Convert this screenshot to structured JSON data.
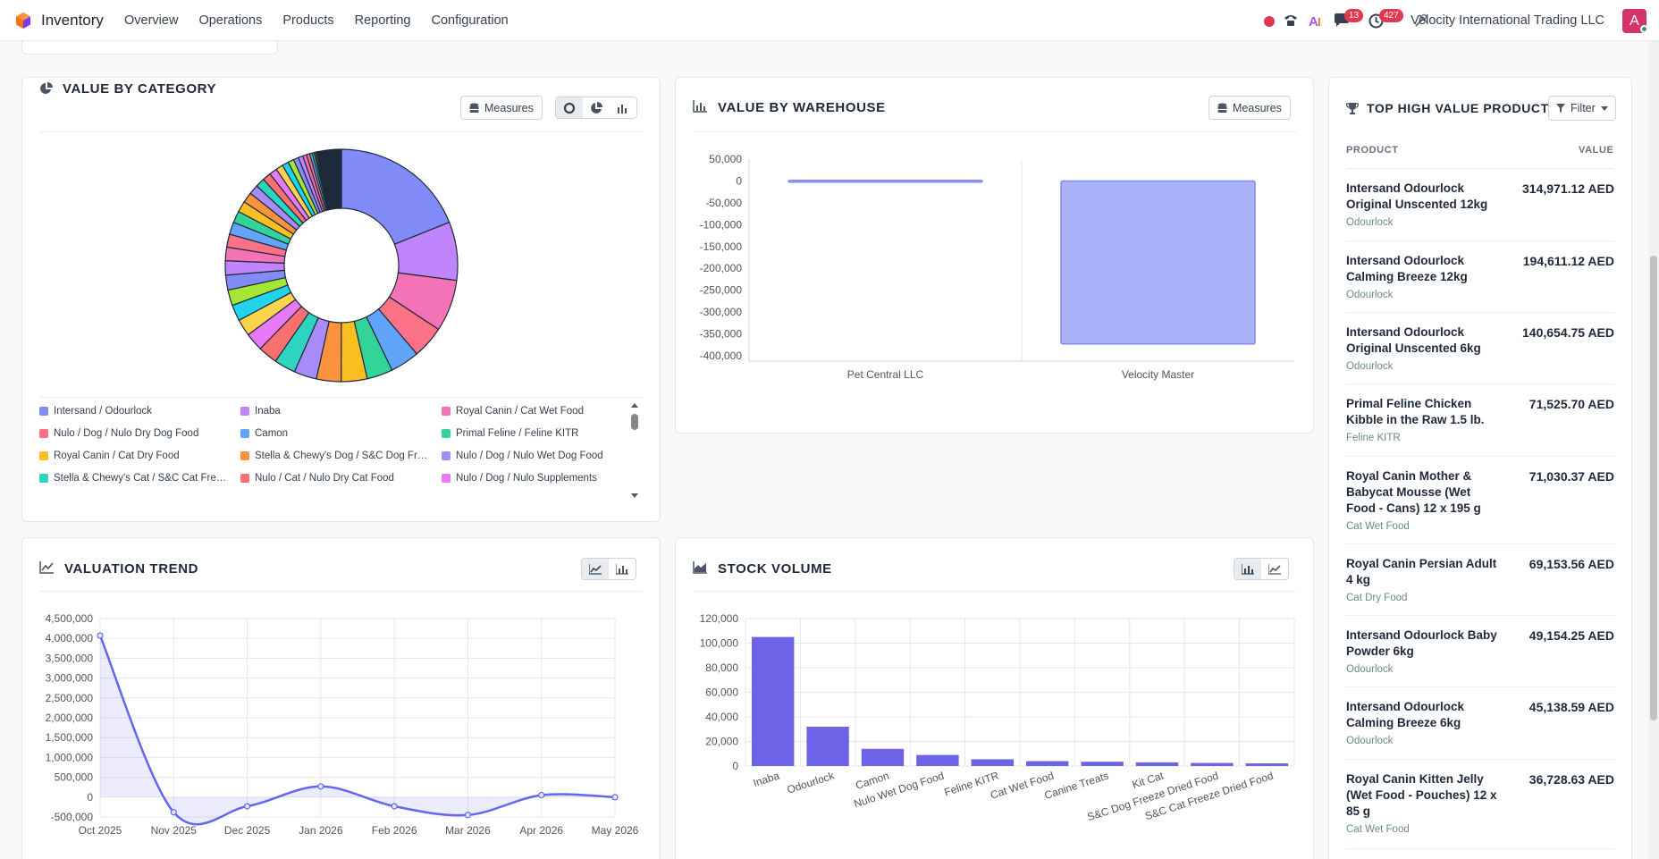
{
  "navbar": {
    "app_name": "Inventory",
    "menu": [
      "Overview",
      "Operations",
      "Products",
      "Reporting",
      "Configuration"
    ],
    "messages_badge": "13",
    "activities_badge": "427",
    "company": "Velocity International Trading LLC",
    "avatar_letter": "A"
  },
  "value_by_category": {
    "title": "VALUE BY CATEGORY",
    "measures_label": "Measures",
    "legend": [
      {
        "label": "Intersand / Odourlock",
        "color": "#818cf8"
      },
      {
        "label": "Inaba",
        "color": "#c084fc"
      },
      {
        "label": "Royal Canin / Cat Wet Food",
        "color": "#f472b6"
      },
      {
        "label": "Nulo / Dog / Nulo Dry Dog Food",
        "color": "#fb7185"
      },
      {
        "label": "Camon",
        "color": "#60a5fa"
      },
      {
        "label": "Primal Feline / Feline KITR",
        "color": "#34d399"
      },
      {
        "label": "Royal Canin / Cat Dry Food",
        "color": "#fbbf24"
      },
      {
        "label": "Stella & Chewy's Dog / S&C Dog Freeze Dried Food",
        "color": "#fb923c"
      },
      {
        "label": "Nulo / Dog / Nulo Wet Dog Food",
        "color": "#a78bfa"
      },
      {
        "label": "Stella & Chewy's Cat / S&C Cat Freeze Dried Food",
        "color": "#2dd4bf"
      },
      {
        "label": "Nulo / Cat / Nulo Dry Cat Food",
        "color": "#f87171"
      },
      {
        "label": "Nulo / Dog / Nulo Supplements",
        "color": "#e879f9"
      }
    ]
  },
  "value_by_warehouse": {
    "title": "VALUE BY WAREHOUSE",
    "measures_label": "Measures"
  },
  "valuation_trend": {
    "title": "VALUATION TREND"
  },
  "stock_volume": {
    "title": "STOCK VOLUME"
  },
  "top_products": {
    "title": "TOP HIGH VALUE PRODUCTS",
    "filter_label": "Filter",
    "col_product": "PRODUCT",
    "col_value": "VALUE",
    "rows": [
      {
        "name": "Intersand Odourlock Original Unscented 12kg",
        "category": "Odourlock",
        "value": "314,971.12 AED"
      },
      {
        "name": "Intersand Odourlock Calming Breeze 12kg",
        "category": "Odourlock",
        "value": "194,611.12 AED"
      },
      {
        "name": "Intersand Odourlock Original Unscented 6kg",
        "category": "Odourlock",
        "value": "140,654.75 AED"
      },
      {
        "name": "Primal Feline Chicken Kibble in the Raw 1.5 lb.",
        "category": "Feline KITR",
        "value": "71,525.70 AED"
      },
      {
        "name": "Royal Canin Mother & Babycat Mousse (Wet Food - Cans) 12 x 195 g",
        "category": "Cat Wet Food",
        "value": "71,030.37 AED"
      },
      {
        "name": "Royal Canin Persian Adult 4 kg",
        "category": "Cat Dry Food",
        "value": "69,153.56 AED"
      },
      {
        "name": "Intersand Odourlock Baby Powder 6kg",
        "category": "Odourlock",
        "value": "49,154.25 AED"
      },
      {
        "name": "Intersand Odourlock Calming Breeze 6kg",
        "category": "Odourlock",
        "value": "45,138.59 AED"
      },
      {
        "name": "Royal Canin Kitten Jelly (Wet Food - Pouches) 12 x 85 g",
        "category": "Cat Wet Food",
        "value": "36,728.63 AED"
      }
    ]
  },
  "chart_data": [
    {
      "type": "pie",
      "title": "VALUE BY CATEGORY",
      "donut": true,
      "labels": [
        "Intersand / Odourlock",
        "Inaba",
        "Royal Canin / Cat Wet Food",
        "Nulo / Dog / Nulo Dry Dog Food",
        "Camon",
        "Primal Feline / Feline KITR",
        "Royal Canin / Cat Dry Food",
        "Stella & Chewy's Dog / S&C Dog Freeze Dried Food",
        "Nulo / Dog / Nulo Wet Dog Food",
        "Stella & Chewy's Cat / S&C Cat Freeze Dried Food",
        "Nulo / Cat / Nulo Dry Cat Food",
        "Nulo / Dog / Nulo Supplements"
      ],
      "values": [
        21.0,
        9.0,
        8.0,
        5.0,
        4.5,
        4.0,
        4.0,
        3.8,
        3.5,
        3.3,
        3.0,
        2.8
      ],
      "other_small_slices": {
        "count": 30,
        "values": [
          2.6,
          2.5,
          2.4,
          2.3,
          2.2,
          2.1,
          2.0,
          1.9,
          1.8,
          1.7,
          1.6,
          1.5,
          1.4,
          1.3,
          1.2,
          1.1,
          1.0,
          0.9,
          0.8,
          0.7,
          0.6,
          0.5,
          0.4,
          0.3,
          0.2,
          0.2,
          0.1,
          0.1,
          0.1,
          3.5
        ]
      },
      "legend_position": "bottom"
    },
    {
      "type": "bar",
      "title": "VALUE BY WAREHOUSE",
      "categories": [
        "Pet Central LLC",
        "Velocity Master"
      ],
      "values": [
        1500,
        -373000
      ],
      "ylim": [
        -400000,
        50000
      ],
      "yticks": [
        50000,
        0,
        -50000,
        -100000,
        -150000,
        -200000,
        -250000,
        -300000,
        -350000,
        -400000
      ],
      "grid": false
    },
    {
      "type": "line",
      "title": "VALUATION TREND",
      "x": [
        "Oct 2025",
        "Nov 2025",
        "Dec 2025",
        "Jan 2026",
        "Feb 2026",
        "Mar 2026",
        "Apr 2026",
        "May 2026"
      ],
      "values": [
        4070000,
        -380000,
        -230000,
        270000,
        -230000,
        -450000,
        50000,
        0
      ],
      "ylim": [
        -500000,
        4500000
      ],
      "yticks": [
        4500000,
        4000000,
        3500000,
        3000000,
        2500000,
        2000000,
        1500000,
        1000000,
        500000,
        0,
        -500000
      ],
      "area_fill": true,
      "grid": true
    },
    {
      "type": "bar",
      "title": "STOCK VOLUME",
      "categories": [
        "Inaba",
        "Odourlock",
        "Camon",
        "Nulo Wet Dog Food",
        "Feline KITR",
        "Cat Wet Food",
        "Canine Treats",
        "Kit Cat",
        "S&C Dog Freeze Dried Food",
        "S&C Cat Freeze Dried Food"
      ],
      "values": [
        105000,
        32000,
        14000,
        9000,
        5500,
        4000,
        3500,
        3000,
        2500,
        2200
      ],
      "ylim": [
        0,
        120000
      ],
      "yticks": [
        120000,
        100000,
        80000,
        60000,
        40000,
        20000,
        0
      ],
      "grid": true
    }
  ]
}
